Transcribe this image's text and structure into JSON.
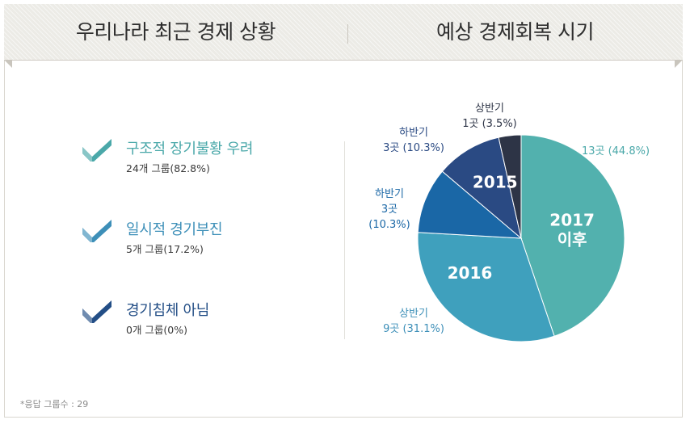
{
  "header": {
    "left_title": "우리나라 최근 경제 상황",
    "right_title": "예상 경제회복 시기"
  },
  "status_items": [
    {
      "label": "구조적 장기불황 우려",
      "detail": "24개 그룹(82.8%)",
      "color": "#4aa8a9",
      "icon": "check-icon"
    },
    {
      "label": "일시적 경기부진",
      "detail": "5개 그룹(17.2%)",
      "color": "#3d8fb8",
      "icon": "check-icon"
    },
    {
      "label": "경기침체 아님",
      "detail": "0개 그룹(0%)",
      "color": "#234e86",
      "icon": "check-icon"
    }
  ],
  "footnote": "*응답 그룹수 : 29",
  "chart_data": {
    "type": "pie",
    "title": "예상 경제회복 시기",
    "slices": [
      {
        "label": "2017 이후",
        "inner_label": [
          "2017",
          "이후"
        ],
        "outer_label": [
          "13곳 (44.8%)"
        ],
        "count": 13,
        "percent": 44.8,
        "color": "#52b1ae"
      },
      {
        "label": "2016 상반기",
        "inner_label": [
          "2016"
        ],
        "outer_label": [
          "상반기",
          "9곳 (31.1%)"
        ],
        "count": 9,
        "percent": 31.1,
        "color": "#3fa0bd"
      },
      {
        "label": "2016 하반기",
        "inner_label": [],
        "outer_label": [
          "하반기",
          "3곳",
          "(10.3%)"
        ],
        "count": 3,
        "percent": 10.3,
        "color": "#1a67a6"
      },
      {
        "label": "2015 하반기",
        "inner_label": [
          "2015"
        ],
        "outer_label": [
          "하반기",
          "3곳 (10.3%)"
        ],
        "count": 3,
        "percent": 10.3,
        "color": "#2a4a83"
      },
      {
        "label": "2015 상반기",
        "inner_label": [],
        "outer_label": [
          "상반기",
          "1곳 (3.5%)"
        ],
        "count": 1,
        "percent": 3.5,
        "color": "#2d3446"
      }
    ],
    "group_labels": [
      {
        "text": "2016",
        "slices": [
          1,
          2
        ]
      },
      {
        "text": "2015",
        "slices": [
          3,
          4
        ]
      }
    ]
  }
}
